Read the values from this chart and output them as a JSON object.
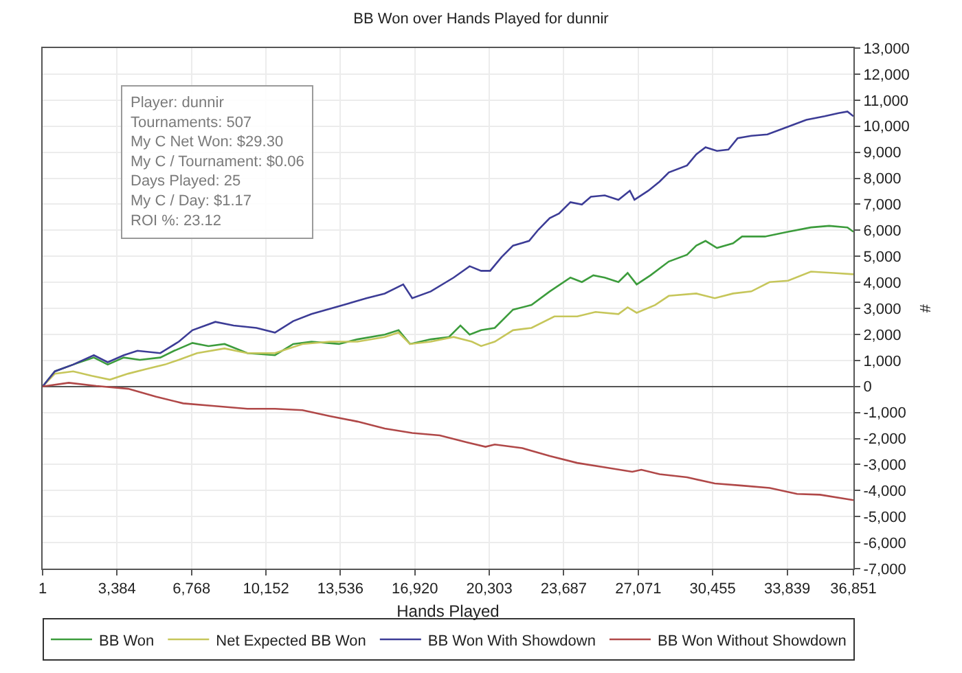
{
  "chart_data": {
    "type": "line",
    "title": "BB Won over Hands Played for dunnir",
    "xlabel": "Hands Played",
    "ylabel": "#",
    "annotations": [
      "Player: dunnir",
      "Tournaments: 507",
      "My C Net Won: $29.30",
      "My C / Tournament: $0.06",
      "Days Played: 25",
      "My C / Day: $1.17",
      "ROI %: 23.12"
    ],
    "xlim": [
      1,
      36851
    ],
    "xticks": [
      1,
      {
        "value": 3384,
        "label": "3,384"
      },
      {
        "value": 6768,
        "label": "6,768"
      },
      {
        "value": 10152,
        "label": "10,152"
      },
      {
        "value": 13536,
        "label": "13,536"
      },
      {
        "value": 16920,
        "label": "16,920"
      },
      {
        "value": 20303,
        "label": "20,303"
      },
      {
        "value": 23687,
        "label": "23,687"
      },
      {
        "value": 27071,
        "label": "27,071"
      },
      {
        "value": 30455,
        "label": "30,455"
      },
      {
        "value": 33839,
        "label": "33,839"
      },
      {
        "value": 36851,
        "label": "36,851"
      }
    ],
    "ylim": [
      -7000,
      13000
    ],
    "yticks": [
      {
        "value": -7000,
        "label": "-7,000"
      },
      {
        "value": -6000,
        "label": "-6,000"
      },
      {
        "value": -5000,
        "label": "-5,000"
      },
      {
        "value": -4000,
        "label": "-4,000"
      },
      {
        "value": -3000,
        "label": "-3,000"
      },
      {
        "value": -2000,
        "label": "-2,000"
      },
      {
        "value": -1000,
        "label": "-1,000"
      },
      0,
      {
        "value": 1000,
        "label": "1,000"
      },
      {
        "value": 2000,
        "label": "2,000"
      },
      {
        "value": 3000,
        "label": "3,000"
      },
      {
        "value": 4000,
        "label": "4,000"
      },
      {
        "value": 5000,
        "label": "5,000"
      },
      {
        "value": 6000,
        "label": "6,000"
      },
      {
        "value": 7000,
        "label": "7,000"
      },
      {
        "value": 8000,
        "label": "8,000"
      },
      {
        "value": 9000,
        "label": "9,000"
      },
      {
        "value": 10000,
        "label": "10,000"
      },
      {
        "value": 11000,
        "label": "11,000"
      },
      {
        "value": 12000,
        "label": "12,000"
      },
      {
        "value": 13000,
        "label": "13,000"
      }
    ],
    "grid": true,
    "legend": "bottom",
    "series": [
      {
        "name": "BB Won",
        "color": "#3c9c3c",
        "x": [
          1,
          560,
          1390,
          2330,
          2960,
          3690,
          4420,
          5350,
          5980,
          6810,
          7540,
          8270,
          9310,
          10560,
          11390,
          12220,
          13470,
          14310,
          15550,
          16180,
          16700,
          17640,
          18470,
          18990,
          19410,
          19930,
          20550,
          21380,
          22220,
          23050,
          23990,
          24510,
          25030,
          25550,
          26170,
          26590,
          27000,
          27630,
          28460,
          29290,
          29710,
          30130,
          30650,
          31380,
          31790,
          32830,
          33880,
          34920,
          35750,
          36580,
          36851
        ],
        "values": [
          0,
          580,
          840,
          1110,
          840,
          1110,
          1020,
          1110,
          1370,
          1670,
          1550,
          1630,
          1280,
          1200,
          1630,
          1720,
          1630,
          1810,
          1990,
          2160,
          1630,
          1810,
          1900,
          2340,
          1990,
          2160,
          2250,
          2950,
          3130,
          3650,
          4180,
          4010,
          4270,
          4180,
          4010,
          4360,
          3920,
          4270,
          4800,
          5060,
          5410,
          5590,
          5320,
          5500,
          5760,
          5760,
          5940,
          6110,
          6170,
          6110,
          5940
        ]
      },
      {
        "name": "Net Expected BB Won",
        "color": "#c6c65a",
        "x": [
          1,
          560,
          1390,
          2230,
          3060,
          3890,
          4730,
          5560,
          6190,
          7020,
          8270,
          9310,
          10560,
          11810,
          13060,
          14310,
          15550,
          16180,
          16700,
          17640,
          18680,
          19510,
          19930,
          20550,
          21380,
          22220,
          23260,
          24300,
          25130,
          26170,
          26590,
          27000,
          27840,
          28460,
          29710,
          30550,
          31380,
          32210,
          33040,
          33880,
          34920,
          35960,
          36851
        ],
        "values": [
          0,
          490,
          580,
          410,
          260,
          490,
          670,
          840,
          1020,
          1280,
          1460,
          1280,
          1280,
          1630,
          1720,
          1720,
          1900,
          2070,
          1630,
          1720,
          1900,
          1720,
          1550,
          1720,
          2160,
          2250,
          2690,
          2690,
          2860,
          2780,
          3040,
          2830,
          3130,
          3480,
          3570,
          3390,
          3570,
          3650,
          4010,
          4060,
          4410,
          4360,
          4310
        ]
      },
      {
        "name": "BB Won With Showdown",
        "color": "#3c3c96",
        "x": [
          1,
          560,
          1390,
          2330,
          2960,
          3690,
          4310,
          5350,
          6190,
          6810,
          7850,
          8680,
          9720,
          10560,
          11390,
          12220,
          13680,
          14720,
          15550,
          16390,
          16800,
          17640,
          18680,
          19410,
          19930,
          20340,
          20860,
          21380,
          22110,
          22530,
          23050,
          23470,
          23990,
          24510,
          24920,
          25550,
          26170,
          26690,
          26900,
          27530,
          28040,
          28460,
          29290,
          29710,
          30130,
          30650,
          31170,
          31590,
          32210,
          32940,
          33880,
          34710,
          35540,
          36170,
          36580,
          36851
        ],
        "values": [
          0,
          580,
          840,
          1200,
          930,
          1200,
          1370,
          1280,
          1720,
          2160,
          2480,
          2340,
          2250,
          2070,
          2510,
          2780,
          3130,
          3390,
          3570,
          3920,
          3390,
          3650,
          4180,
          4620,
          4440,
          4440,
          4970,
          5410,
          5590,
          6020,
          6470,
          6640,
          7080,
          6990,
          7290,
          7340,
          7170,
          7520,
          7170,
          7520,
          7870,
          8220,
          8490,
          8920,
          9190,
          9050,
          9100,
          9540,
          9630,
          9680,
          9980,
          10240,
          10380,
          10500,
          10560,
          10380
        ]
      },
      {
        "name": "BB Won Without Showdown",
        "color": "#b04848",
        "x": [
          1,
          1190,
          2440,
          3890,
          5140,
          6390,
          7640,
          9310,
          10560,
          11810,
          13060,
          14310,
          15550,
          16800,
          18050,
          19300,
          20130,
          20550,
          21800,
          23050,
          24300,
          25550,
          26800,
          27210,
          28040,
          29290,
          30550,
          31790,
          33040,
          34290,
          35330,
          36851
        ],
        "values": [
          0,
          140,
          20,
          -90,
          -390,
          -650,
          -740,
          -860,
          -860,
          -910,
          -1140,
          -1350,
          -1620,
          -1790,
          -1880,
          -2150,
          -2320,
          -2230,
          -2370,
          -2670,
          -2940,
          -3110,
          -3280,
          -3200,
          -3370,
          -3490,
          -3730,
          -3810,
          -3900,
          -4130,
          -4160,
          -4370
        ]
      }
    ]
  }
}
